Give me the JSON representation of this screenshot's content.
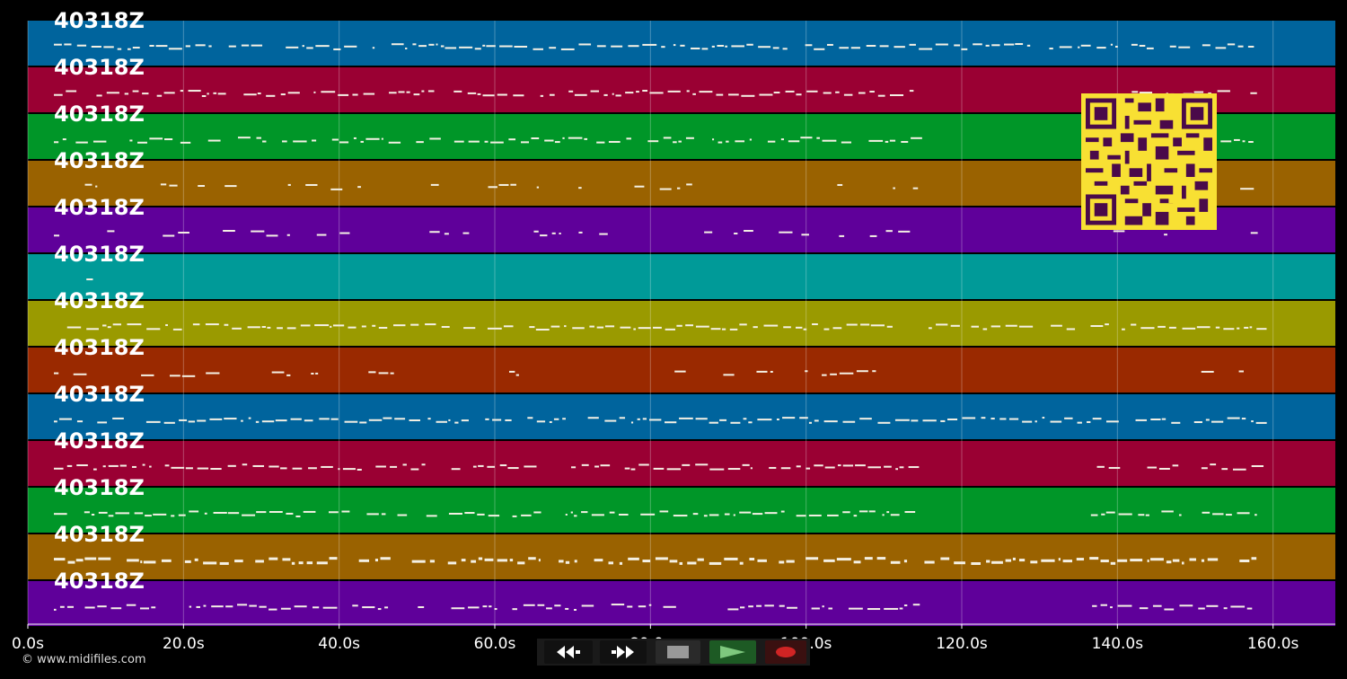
{
  "tracks": [
    {
      "label": "40318Z",
      "color": "#00649d"
    },
    {
      "label": "40318Z",
      "color": "#9a0033"
    },
    {
      "label": "40318Z",
      "color": "#009628"
    },
    {
      "label": "40318Z",
      "color": "#9a6200"
    },
    {
      "label": "40318Z",
      "color": "#5f009a"
    },
    {
      "label": "40318Z",
      "color": "#009a98"
    },
    {
      "label": "40318Z",
      "color": "#9a9a00"
    },
    {
      "label": "40318Z",
      "color": "#9a2900"
    },
    {
      "label": "40318Z",
      "color": "#00649d"
    },
    {
      "label": "40318Z",
      "color": "#9a0033"
    },
    {
      "label": "40318Z",
      "color": "#009628"
    },
    {
      "label": "40318Z",
      "color": "#9a6200"
    },
    {
      "label": "40318Z",
      "color": "#5f009a"
    }
  ],
  "timeline": {
    "max_seconds": 168,
    "ticks": [
      "0.0s",
      "20.0s",
      "40.0s",
      "60.0s",
      "80.0s",
      "100.0s",
      "120.0s",
      "140.0s",
      "160.0s"
    ]
  },
  "transport": {
    "rewind_icon": "double-left-arrow",
    "forward_icon": "double-right-arrow",
    "stop_icon": "square",
    "play_icon": "triangle",
    "record_icon": "red-ellipse"
  },
  "copyright": "© www.midifiles.com",
  "qr_color": "#f8e033"
}
